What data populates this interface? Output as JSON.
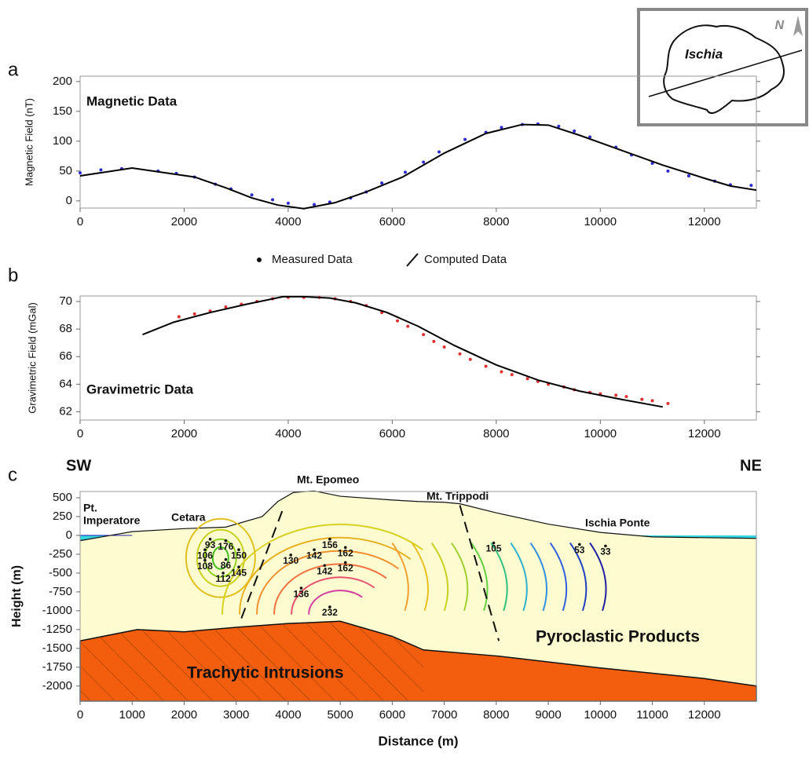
{
  "inset": {
    "title": "Ischia",
    "north": "N"
  },
  "chart_data": [
    {
      "type": "line",
      "label": "a",
      "title": "Magnetic Data",
      "ylabel": "Magnetic Field (nT)",
      "xlim": [
        0,
        13000
      ],
      "ylim": [
        -12,
        209
      ],
      "xticks": [
        0,
        2000,
        4000,
        6000,
        8000,
        10000,
        12000
      ],
      "yticks": [
        0,
        50,
        100,
        150,
        200
      ],
      "series": [
        {
          "name": "Measured Data",
          "type": "scatter",
          "color": "#2a2ad0",
          "x": [
            0,
            400,
            800,
            1500,
            1850,
            2200,
            2600,
            2900,
            3300,
            3700,
            4000,
            4500,
            4800,
            5200,
            5500,
            5800,
            6250,
            6600,
            6900,
            7400,
            7800,
            8100,
            8500,
            8800,
            9200,
            9500,
            9800,
            10300,
            10600,
            11000,
            11300,
            11700,
            12200,
            12500,
            12900
          ],
          "values": [
            47,
            52,
            54,
            50,
            46,
            40,
            28,
            20,
            10,
            2,
            -4,
            -6,
            -2,
            5,
            15,
            30,
            48,
            65,
            82,
            103,
            115,
            123,
            128,
            129,
            125,
            117,
            107,
            90,
            77,
            63,
            50,
            42,
            33,
            27,
            26
          ]
        },
        {
          "name": "Computed Data",
          "type": "line",
          "color": "#000000",
          "x": [
            0,
            1000,
            2200,
            2800,
            3300,
            3800,
            4300,
            4900,
            5500,
            6200,
            7000,
            7800,
            8500,
            9000,
            9600,
            10400,
            11200,
            12000,
            12500,
            13000
          ],
          "values": [
            42,
            55,
            40,
            22,
            5,
            -7,
            -13,
            -3,
            15,
            40,
            80,
            113,
            128,
            127,
            110,
            85,
            60,
            38,
            25,
            18
          ]
        }
      ]
    },
    {
      "type": "line",
      "label": "b",
      "title": "Gravimetric Data",
      "ylabel": "Gravimetric Field (mGal)",
      "xlim": [
        0,
        13000
      ],
      "ylim": [
        61.4,
        70.4
      ],
      "xticks": [
        0,
        2000,
        4000,
        6000,
        8000,
        10000,
        12000
      ],
      "yticks": [
        62,
        64,
        66,
        68,
        70
      ],
      "series": [
        {
          "name": "Measured Data",
          "type": "scatter",
          "color": "#e03030",
          "x": [
            1900,
            2200,
            2500,
            2800,
            3100,
            3400,
            3700,
            4000,
            4300,
            4600,
            4900,
            5200,
            5500,
            5800,
            6100,
            6300,
            6600,
            6800,
            7000,
            7300,
            7500,
            7800,
            8100,
            8300,
            8600,
            8800,
            9000,
            9300,
            9500,
            9800,
            10000,
            10300,
            10500,
            10800,
            11000,
            11300
          ],
          "values": [
            68.9,
            69.1,
            69.3,
            69.6,
            69.8,
            70.0,
            70.2,
            70.3,
            70.3,
            70.3,
            70.2,
            70.0,
            69.7,
            69.2,
            68.6,
            68.2,
            67.6,
            67.1,
            66.7,
            66.2,
            65.8,
            65.3,
            64.9,
            64.7,
            64.4,
            64.2,
            64.0,
            63.8,
            63.6,
            63.4,
            63.3,
            63.2,
            63.1,
            62.9,
            62.8,
            62.6
          ]
        },
        {
          "name": "Computed Data",
          "type": "line",
          "color": "#000000",
          "x": [
            1200,
            1800,
            2500,
            3200,
            3900,
            4300,
            4800,
            5300,
            5900,
            6500,
            7200,
            8000,
            8800,
            9600,
            10400,
            11200
          ],
          "values": [
            67.6,
            68.5,
            69.2,
            69.8,
            70.35,
            70.35,
            70.25,
            69.9,
            69.2,
            68.2,
            66.8,
            65.4,
            64.3,
            63.5,
            62.9,
            62.35
          ]
        }
      ]
    },
    {
      "type": "section",
      "label": "c",
      "xlabel": "Distance (m)",
      "ylabel": "Height (m)",
      "xlim": [
        0,
        13000
      ],
      "ylim": [
        -2200,
        583
      ],
      "xticks": [
        0,
        1000,
        2000,
        3000,
        4000,
        5000,
        6000,
        7000,
        8000,
        9000,
        10000,
        11000,
        12000
      ],
      "yticks": [
        500,
        250,
        0,
        -250,
        -500,
        -750,
        -1000,
        -1250,
        -1500,
        -1750,
        -2000
      ],
      "sea_color": "#33d6e0",
      "pyroclastic_color": "#fdfbd0",
      "intrusion_color": "#f25e0d",
      "surface_x": [
        0,
        1000,
        2000,
        2800,
        3500,
        3800,
        4100,
        4500,
        5000,
        6000,
        6500,
        7000,
        7300,
        8000,
        9000,
        10000,
        11000,
        12000,
        13000
      ],
      "surface_y": [
        -70,
        50,
        90,
        110,
        250,
        450,
        570,
        590,
        520,
        470,
        450,
        440,
        420,
        300,
        150,
        40,
        -20,
        -30,
        -40
      ],
      "intrusion_x": [
        0,
        1100,
        2000,
        3000,
        4000,
        5000,
        6000,
        6600,
        8000,
        10000,
        12000,
        13000
      ],
      "intrusion_y": [
        -1400,
        -1250,
        -1280,
        -1220,
        -1170,
        -1140,
        -1340,
        -1520,
        -1600,
        -1760,
        -1900,
        -2000
      ],
      "annotations": [
        "SW",
        "NE",
        "Mt. Epomeo",
        "Mt. Trippodi",
        "Pt.",
        "Imperatore",
        "Cetara",
        "Ischia Ponte",
        "Pyroclastic Products",
        "Trachytic Intrusions"
      ],
      "stations": {
        "x": [
          2500,
          2800,
          3050,
          2400,
          2800,
          2400,
          3050,
          2750,
          4050,
          4500,
          4800,
          5100,
          4700,
          5100,
          4250,
          4800,
          7950,
          9600,
          10100
        ],
        "y": [
          -50,
          -70,
          -190,
          -190,
          -320,
          -330,
          -420,
          -500,
          -260,
          -190,
          -50,
          -160,
          -400,
          -360,
          -700,
          -950,
          -100,
          -120,
          -140
        ],
        "values": [
          93,
          176,
          150,
          106,
          86,
          108,
          145,
          112,
          130,
          142,
          156,
          162,
          142,
          162,
          136,
          232,
          105,
          53,
          33
        ]
      }
    }
  ]
}
